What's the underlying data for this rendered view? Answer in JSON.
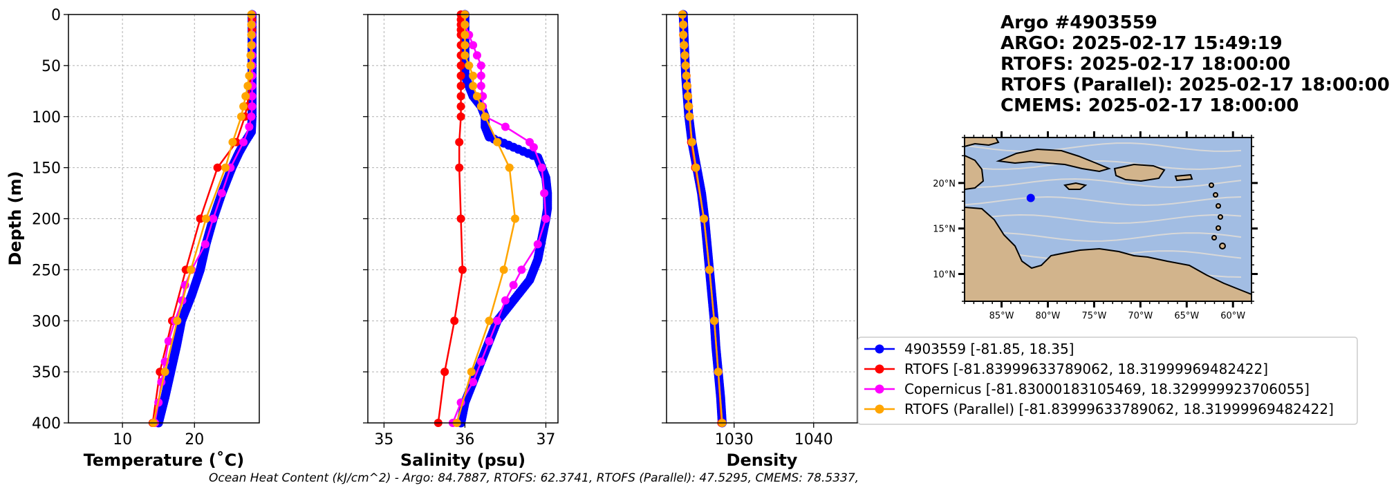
{
  "title_lines": [
    "Argo #4903559",
    "ARGO:  2025-02-17 15:49:19",
    "RTOFS: 2025-02-17 18:00:00",
    "RTOFS (Parallel): 2025-02-17 18:00:00",
    "CMEMS: 2025-02-17 18:00:00"
  ],
  "ohc_text": "Ocean Heat Content (kJ/cm^2) - Argo: 84.7887,  RTOFS: 62.3741,  RTOFS (Parallel): 47.5295,  CMEMS: 78.5337,",
  "depth_label": "Depth (m)",
  "colors": {
    "argo": "#0000ff",
    "rtofs": "#ff0000",
    "copernicus": "#ff00ff",
    "parallel": "#ffa500",
    "ocean": "#a2bde3",
    "land": "#d2b48c",
    "stream": "#d8d8d8"
  },
  "legend": [
    {
      "label": "4903559 [-81.85, 18.35]",
      "color": "#0000ff"
    },
    {
      "label": "RTOFS [-81.83999633789062, 18.31999969482422]",
      "color": "#ff0000"
    },
    {
      "label": "Copernicus [-81.83000183105469, 18.329999923706055]",
      "color": "#ff00ff"
    },
    {
      "label": "RTOFS (Parallel) [-81.83999633789062, 18.31999969482422]",
      "color": "#ffa500"
    }
  ],
  "map": {
    "lon_ticks": [
      "85°W",
      "80°W",
      "75°W",
      "70°W",
      "65°W",
      "60°W"
    ],
    "lon_values": [
      -85,
      -80,
      -75,
      -70,
      -65,
      -60
    ],
    "lat_ticks": [
      "20°N",
      "15°N",
      "10°N"
    ],
    "lat_values": [
      20,
      15,
      10
    ],
    "lon_range": [
      -89,
      -58
    ],
    "lat_range": [
      7,
      25
    ],
    "float_position": [
      -81.85,
      18.35
    ]
  },
  "chart_data": [
    {
      "type": "line",
      "xlabel": "Temperature (˚C)",
      "ylabel": "Depth (m)",
      "xlim": [
        2.5,
        29
      ],
      "ylim": [
        400,
        0
      ],
      "xticks": [
        10,
        20
      ],
      "yticks": [
        0,
        50,
        100,
        150,
        200,
        250,
        300,
        350,
        400
      ],
      "grid": true,
      "series": [
        {
          "key": "argo",
          "dense": true,
          "depth": [
            0,
            20,
            40,
            60,
            80,
            100,
            115,
            125,
            135,
            150,
            175,
            200,
            225,
            250,
            275,
            300,
            325,
            350,
            375,
            400
          ],
          "values": [
            28.0,
            28.0,
            28.0,
            28.0,
            28.0,
            28.0,
            27.9,
            27.0,
            26.2,
            25.2,
            23.8,
            22.6,
            21.6,
            20.8,
            19.6,
            18.2,
            17.5,
            16.7,
            15.9,
            15.0
          ]
        },
        {
          "key": "rtofs",
          "depth": [
            0,
            5,
            10,
            15,
            20,
            30,
            40,
            50,
            60,
            70,
            80,
            90,
            100,
            125,
            150,
            200,
            250,
            300,
            350,
            400
          ],
          "values": [
            28.0,
            28.0,
            28.0,
            28.0,
            28.0,
            28.0,
            28.0,
            27.9,
            27.8,
            27.7,
            27.5,
            27.3,
            27.0,
            25.8,
            23.2,
            20.8,
            18.8,
            16.9,
            15.2,
            14.2
          ]
        },
        {
          "key": "copernicus",
          "depth": [
            0,
            10,
            20,
            30,
            40,
            50,
            60,
            70,
            80,
            90,
            100,
            110,
            125,
            150,
            175,
            200,
            225,
            250,
            265,
            280,
            300,
            320,
            340,
            360,
            380,
            400
          ],
          "values": [
            28.0,
            28.0,
            28.0,
            28.0,
            28.0,
            28.0,
            28.0,
            28.0,
            28.0,
            28.0,
            27.9,
            27.6,
            26.8,
            25.0,
            23.8,
            22.6,
            21.5,
            19.6,
            18.7,
            18.3,
            17.3,
            16.4,
            15.9,
            15.4,
            15.0,
            14.5
          ]
        },
        {
          "key": "parallel",
          "depth": [
            0,
            10,
            20,
            30,
            40,
            50,
            60,
            70,
            80,
            90,
            100,
            125,
            150,
            200,
            250,
            300,
            350,
            400
          ],
          "values": [
            27.9,
            27.9,
            27.9,
            27.9,
            27.8,
            27.8,
            27.6,
            27.4,
            27.1,
            26.8,
            26.5,
            25.3,
            24.3,
            21.6,
            19.5,
            17.6,
            15.9,
            14.3
          ]
        }
      ]
    },
    {
      "type": "line",
      "xlabel": "Salinity (psu)",
      "ylabel": "",
      "xlim": [
        34.8,
        37.15
      ],
      "ylim": [
        400,
        0
      ],
      "xticks": [
        35,
        36,
        37
      ],
      "yticks": [
        0,
        50,
        100,
        150,
        200,
        250,
        300,
        350,
        400
      ],
      "grid": true,
      "series": [
        {
          "key": "argo",
          "dense": true,
          "depth": [
            0,
            20,
            40,
            60,
            70,
            80,
            90,
            100,
            110,
            120,
            130,
            140,
            150,
            160,
            175,
            190,
            200,
            220,
            240,
            250,
            260,
            280,
            300,
            320,
            340,
            350,
            360,
            380,
            400
          ],
          "values": [
            36.0,
            36.0,
            36.0,
            36.0,
            36.05,
            36.1,
            36.2,
            36.25,
            36.25,
            36.3,
            36.6,
            36.9,
            36.95,
            37.0,
            37.02,
            37.02,
            37.0,
            36.95,
            36.9,
            36.85,
            36.8,
            36.6,
            36.4,
            36.3,
            36.2,
            36.15,
            36.1,
            36.0,
            35.95
          ]
        },
        {
          "key": "rtofs",
          "depth": [
            0,
            5,
            10,
            15,
            20,
            30,
            40,
            50,
            60,
            70,
            80,
            90,
            100,
            125,
            150,
            200,
            250,
            300,
            350,
            400
          ],
          "values": [
            35.95,
            35.95,
            35.95,
            35.95,
            35.95,
            35.95,
            35.95,
            35.95,
            35.95,
            35.95,
            35.95,
            35.95,
            35.95,
            35.93,
            35.93,
            35.95,
            35.97,
            35.87,
            35.75,
            35.67
          ]
        },
        {
          "key": "copernicus",
          "depth": [
            0,
            10,
            20,
            30,
            40,
            50,
            60,
            70,
            80,
            90,
            100,
            110,
            125,
            130,
            150,
            175,
            200,
            225,
            250,
            265,
            280,
            300,
            320,
            340,
            360,
            380,
            400
          ],
          "values": [
            36.0,
            36.0,
            36.05,
            36.1,
            36.15,
            36.2,
            36.2,
            36.2,
            36.22,
            36.22,
            36.25,
            36.5,
            36.8,
            36.85,
            36.95,
            36.98,
            37.0,
            36.9,
            36.7,
            36.6,
            36.5,
            36.4,
            36.3,
            36.2,
            36.1,
            35.95,
            35.85
          ]
        },
        {
          "key": "parallel",
          "depth": [
            0,
            10,
            20,
            30,
            40,
            50,
            60,
            70,
            80,
            90,
            100,
            125,
            150,
            200,
            250,
            300,
            350,
            400
          ],
          "values": [
            36.0,
            36.0,
            36.0,
            36.0,
            36.0,
            36.05,
            36.1,
            36.1,
            36.15,
            36.2,
            36.25,
            36.4,
            36.55,
            36.62,
            36.48,
            36.3,
            36.08,
            35.9
          ]
        }
      ]
    },
    {
      "type": "line",
      "xlabel": "Density",
      "ylabel": "",
      "xlim": [
        1021.5,
        1045.5
      ],
      "ylim": [
        400,
        0
      ],
      "xticks": [
        1030,
        1040
      ],
      "yticks": [
        0,
        50,
        100,
        150,
        200,
        250,
        300,
        350,
        400
      ],
      "grid": true,
      "series": [
        {
          "key": "argo",
          "dense": true,
          "depth": [
            0,
            20,
            40,
            60,
            80,
            100,
            125,
            150,
            175,
            200,
            225,
            250,
            275,
            300,
            325,
            350,
            375,
            400
          ],
          "values": [
            1023.6,
            1023.7,
            1023.8,
            1023.9,
            1024.1,
            1024.3,
            1024.7,
            1025.3,
            1025.9,
            1026.3,
            1026.6,
            1026.9,
            1027.2,
            1027.5,
            1027.7,
            1028.0,
            1028.3,
            1028.5
          ]
        },
        {
          "key": "rtofs",
          "depth": [
            0,
            10,
            20,
            30,
            40,
            50,
            60,
            70,
            80,
            90,
            100,
            125,
            150,
            200,
            250,
            300,
            350,
            400
          ],
          "values": [
            1023.5,
            1023.6,
            1023.6,
            1023.7,
            1023.8,
            1023.9,
            1024.0,
            1024.1,
            1024.2,
            1024.3,
            1024.4,
            1024.6,
            1025.1,
            1026.2,
            1026.9,
            1027.5,
            1028.0,
            1028.4
          ]
        },
        {
          "key": "copernicus",
          "depth": [
            0,
            10,
            20,
            30,
            40,
            50,
            60,
            70,
            80,
            90,
            100,
            125,
            150,
            200,
            250,
            300,
            350,
            400
          ],
          "values": [
            1023.5,
            1023.6,
            1023.6,
            1023.7,
            1023.8,
            1023.9,
            1024.0,
            1024.1,
            1024.2,
            1024.3,
            1024.4,
            1024.7,
            1025.2,
            1026.2,
            1026.9,
            1027.5,
            1028.0,
            1028.5
          ]
        },
        {
          "key": "parallel",
          "depth": [
            0,
            10,
            20,
            30,
            40,
            50,
            60,
            70,
            80,
            90,
            100,
            125,
            150,
            200,
            250,
            300,
            350,
            400
          ],
          "values": [
            1023.5,
            1023.6,
            1023.6,
            1023.7,
            1023.8,
            1023.9,
            1024.0,
            1024.1,
            1024.2,
            1024.3,
            1024.4,
            1024.7,
            1025.2,
            1026.2,
            1026.9,
            1027.5,
            1028.0,
            1028.5
          ]
        }
      ]
    }
  ]
}
